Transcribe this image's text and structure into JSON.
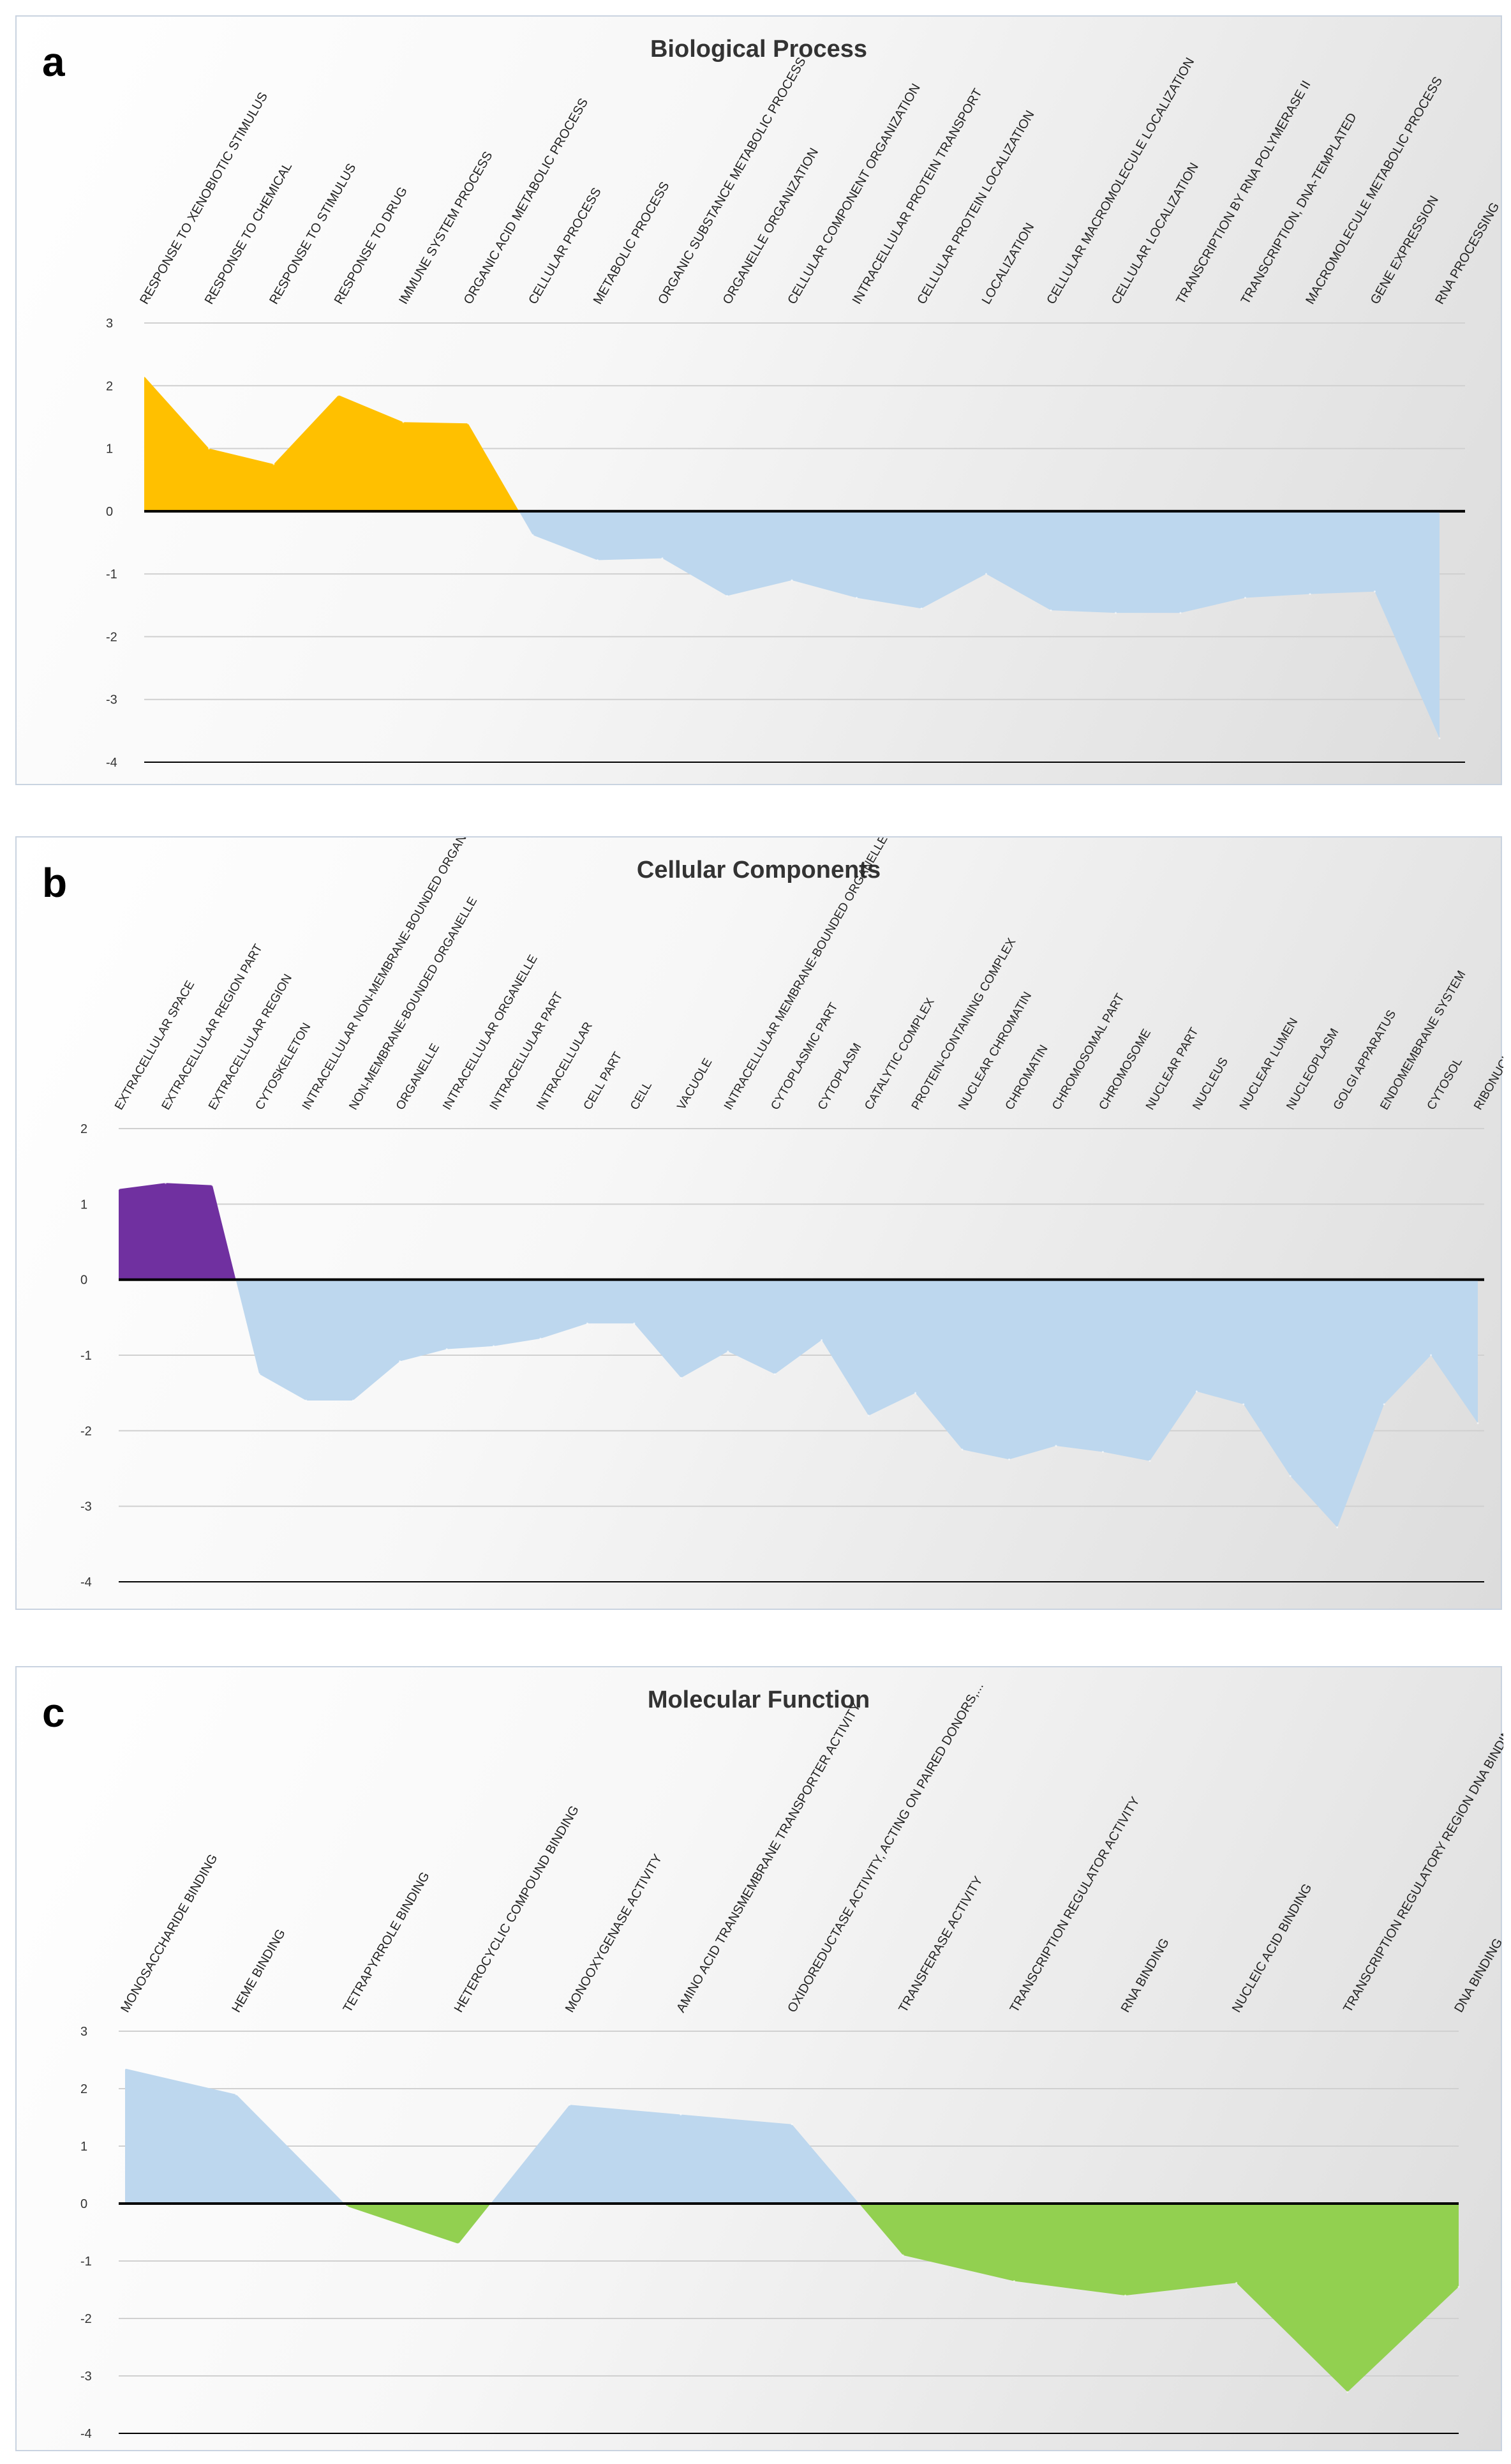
{
  "figure": {
    "colors": {
      "bp_pos": "#FFC000",
      "bp_neg": "#BDD7EE",
      "cc_pos": "#7030A0",
      "cc_neg": "#BDD7EE",
      "mf_top": "#BDD7EE",
      "mf_bottom": "#92D050"
    }
  },
  "chart_data": [
    {
      "panel": "a",
      "type": "area",
      "title": "Biological Process",
      "ylim": [
        -4,
        3
      ],
      "yticks": [
        3,
        2,
        1,
        0,
        -1,
        -2,
        -3,
        -4
      ],
      "categories": [
        "RESPONSE TO XENOBIOTIC STIMULUS",
        "RESPONSE TO CHEMICAL",
        "RESPONSE TO STIMULUS",
        "RESPONSE TO DRUG",
        "IMMUNE SYSTEM PROCESS",
        "ORGANIC ACID METABOLIC PROCESS",
        "CELLULAR PROCESS",
        "METABOLIC PROCESS",
        "ORGANIC SUBSTANCE METABOLIC PROCESS",
        "ORGANELLE ORGANIZATION",
        "CELLULAR COMPONENT ORGANIZATION",
        "INTRACELLULAR PROTEIN TRANSPORT",
        "CELLULAR PROTEIN LOCALIZATION",
        "LOCALIZATION",
        "CELLULAR MACROMOLECULE LOCALIZATION",
        "CELLULAR LOCALIZATION",
        "TRANSCRIPTION BY RNA POLYMERASE II",
        "TRANSCRIPTION, DNA-TEMPLATED",
        "MACROMOLECULE METABOLIC PROCESS",
        "GENE EXPRESSION",
        "RNA PROCESSING"
      ],
      "values": [
        2.15,
        1.0,
        0.75,
        1.85,
        1.42,
        1.4,
        -0.38,
        -0.78,
        -0.75,
        -1.35,
        -1.1,
        -1.38,
        -1.55,
        -1.0,
        -1.58,
        -1.62,
        -1.62,
        -1.38,
        -1.32,
        -1.28,
        -3.62
      ],
      "label_extent": "full"
    },
    {
      "panel": "b",
      "type": "area",
      "title": "Cellular Components",
      "ylim": [
        -4,
        2
      ],
      "yticks": [
        2,
        1,
        0,
        -1,
        -2,
        -3,
        -4
      ],
      "categories": [
        "EXTRACELLULAR SPACE",
        "EXTRACELLULAR REGION PART",
        "EXTRACELLULAR REGION",
        "CYTOSKELETON",
        "INTRACELLULAR NON-MEMBRANE-BOUNDED ORGANELLE",
        "NON-MEMBRANE-BOUNDED ORGANELLE",
        "ORGANELLE",
        "INTRACELLULAR ORGANELLE",
        "INTRACELLULAR PART",
        "INTRACELLULAR",
        "CELL PART",
        "CELL",
        "VACUOLE",
        "INTRACELLULAR MEMBRANE-BOUNDED ORGANELLE",
        "CYTOPLASMIC PART",
        "CYTOPLASM",
        "CATALYTIC COMPLEX",
        "PROTEIN-CONTAINING COMPLEX",
        "NUCLEAR CHROMATIN",
        "CHROMATIN",
        "CHROMOSOMAL PART",
        "CHROMOSOME",
        "NUCLEAR PART",
        "NUCLEUS",
        "NUCLEAR LUMEN",
        "NUCLEOPLASM",
        "GOLGI APPARATUS",
        "ENDOMEMBRANE SYSTEM",
        "CYTOSOL",
        "RIBONUCLEOPROTEIN COMPLEX"
      ],
      "values": [
        1.2,
        1.28,
        1.25,
        -1.25,
        -1.6,
        -1.6,
        -1.08,
        -0.92,
        -0.88,
        -0.78,
        -0.58,
        -0.58,
        -1.3,
        -0.95,
        -1.25,
        -0.8,
        -1.8,
        -1.5,
        -2.25,
        -2.38,
        -2.2,
        -2.28,
        -2.4,
        -1.48,
        -1.65,
        -2.6,
        -3.28,
        -1.65,
        -1.0,
        -1.9
      ],
      "last_label_visible": "RIBONUC"
    },
    {
      "panel": "c",
      "type": "area",
      "title": "Molecular Function",
      "ylim": [
        -4,
        3
      ],
      "yticks": [
        3,
        2,
        1,
        0,
        -1,
        -2,
        -3,
        -4
      ],
      "categories": [
        "MONOSACCHARIDE BINDING",
        "HEME BINDING",
        "TETRAPYRROLE BINDING",
        "HETEROCYCLIC COMPOUND BINDING",
        "MONOOXYGENASE ACTIVITY",
        "AMINO ACID TRANSMEMBRANE TRANSPORTER ACTIVITY",
        "OXIDOREDUCTASE ACTIVITY, ACTING ON PAIRED DONORS,...",
        "TRANSFERASE ACTIVITY",
        "TRANSCRIPTION REGULATOR ACTIVITY",
        "RNA BINDING",
        "NUCLEIC ACID BINDING",
        "TRANSCRIPTION REGULATORY REGION DNA BINDING",
        "DNA BINDING"
      ],
      "values": [
        2.35,
        1.9,
        -0.05,
        -0.7,
        1.72,
        1.55,
        1.38,
        -0.9,
        -1.35,
        -1.6,
        -1.38,
        -3.28,
        -1.45
      ],
      "last_labels_clipped": [
        "TRANSCRIPTION REGULATORY REGION DNA BIN",
        "DNA BIN"
      ]
    }
  ]
}
